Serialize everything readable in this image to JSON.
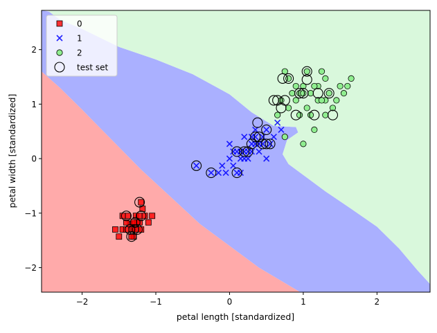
{
  "chart_data": {
    "type": "scatter",
    "xlabel": "petal length [standardized]",
    "ylabel": "petal width [standardized]",
    "xlim": [
      -2.55,
      2.72
    ],
    "ylim": [
      -2.45,
      2.72
    ],
    "x_ticks": [
      -2,
      -1,
      0,
      1,
      2
    ],
    "y_ticks": [
      -2,
      -1,
      0,
      1,
      2
    ],
    "x_tick_labels": [
      "−2",
      "−1",
      "0",
      "1",
      "2"
    ],
    "y_tick_labels": [
      "−2",
      "−1",
      "0",
      "1",
      "2"
    ],
    "grid": false,
    "legend_placement": "top-left",
    "legend": [
      {
        "label": "0",
        "marker": "square",
        "color": "#ff0000"
      },
      {
        "label": "1",
        "marker": "x",
        "color": "#0000ff"
      },
      {
        "label": "2",
        "marker": "circle",
        "color": "#90ee90"
      },
      {
        "label": "test set",
        "marker": "open-circle",
        "color": "#000000"
      }
    ],
    "regions": [
      {
        "class": "0",
        "color": "#ffaaaa",
        "polygon": [
          [
            -2.55,
            2.72
          ],
          [
            -2.55,
            1.6
          ],
          [
            -2.3,
            1.3
          ],
          [
            -2.0,
            0.9
          ],
          [
            -1.6,
            0.35
          ],
          [
            -1.2,
            -0.2
          ],
          [
            -0.8,
            -0.7
          ],
          [
            -0.4,
            -1.2
          ],
          [
            0.0,
            -1.6
          ],
          [
            0.4,
            -2.0
          ],
          [
            0.96,
            -2.45
          ],
          [
            -2.55,
            -2.45
          ]
        ]
      },
      {
        "class": "1",
        "color": "#aab0ff",
        "polygon": [
          [
            -2.55,
            1.6
          ],
          [
            -2.55,
            2.72
          ],
          [
            -2.45,
            2.7
          ],
          [
            -2.3,
            2.55
          ],
          [
            -2.0,
            2.38
          ],
          [
            -1.5,
            2.05
          ],
          [
            -1.0,
            1.82
          ],
          [
            -0.5,
            1.55
          ],
          [
            0.0,
            1.18
          ],
          [
            0.3,
            0.85
          ],
          [
            0.6,
            0.6
          ],
          [
            0.9,
            0.58
          ],
          [
            0.93,
            0.48
          ],
          [
            0.78,
            0.34
          ],
          [
            0.72,
            0.08
          ],
          [
            0.8,
            -0.1
          ],
          [
            1.0,
            -0.3
          ],
          [
            1.3,
            -0.6
          ],
          [
            1.65,
            -0.92
          ],
          [
            2.0,
            -1.25
          ],
          [
            2.3,
            -1.65
          ],
          [
            2.55,
            -2.05
          ],
          [
            2.72,
            -2.3
          ],
          [
            2.72,
            -2.45
          ],
          [
            0.96,
            -2.45
          ],
          [
            0.4,
            -2.0
          ],
          [
            0.0,
            -1.6
          ],
          [
            -0.4,
            -1.2
          ],
          [
            -0.8,
            -0.7
          ],
          [
            -1.2,
            -0.2
          ],
          [
            -1.6,
            0.35
          ],
          [
            -2.0,
            0.9
          ],
          [
            -2.3,
            1.3
          ]
        ]
      },
      {
        "class": "2",
        "color": "#d9f8dc",
        "polygon": [
          [
            -2.45,
            2.72
          ],
          [
            2.72,
            2.72
          ],
          [
            2.72,
            -2.3
          ],
          [
            2.55,
            -2.05
          ],
          [
            2.3,
            -1.65
          ],
          [
            2.0,
            -1.25
          ],
          [
            1.65,
            -0.92
          ],
          [
            1.3,
            -0.6
          ],
          [
            1.0,
            -0.3
          ],
          [
            0.8,
            -0.1
          ],
          [
            0.72,
            0.08
          ],
          [
            0.78,
            0.34
          ],
          [
            0.93,
            0.48
          ],
          [
            0.9,
            0.58
          ],
          [
            0.6,
            0.6
          ],
          [
            0.3,
            0.85
          ],
          [
            0.0,
            1.18
          ],
          [
            -0.5,
            1.55
          ],
          [
            -1.0,
            1.82
          ],
          [
            -1.5,
            2.05
          ],
          [
            -2.0,
            2.38
          ],
          [
            -2.3,
            2.55
          ],
          [
            -2.45,
            2.7
          ]
        ]
      }
    ],
    "series": [
      {
        "name": "0",
        "marker": "square",
        "color": "#ff0000",
        "x": [
          -1.55,
          -1.5,
          -1.45,
          -1.4,
          -1.38,
          -1.35,
          -1.33,
          -1.3,
          -1.3,
          -1.28,
          -1.27,
          -1.25,
          -1.25,
          -1.22,
          -1.2,
          -1.2,
          -1.18,
          -1.15,
          -1.1,
          -1.05,
          -1.33,
          -1.3,
          -1.22,
          -1.4,
          -1.45
        ],
        "y": [
          -1.3,
          -1.43,
          -1.3,
          -1.3,
          -1.05,
          -1.2,
          -1.3,
          -1.3,
          -1.43,
          -1.2,
          -1.05,
          -1.3,
          -1.17,
          -1.05,
          -0.8,
          -1.3,
          -0.92,
          -1.05,
          -1.17,
          -1.05,
          -1.43,
          -1.17,
          -1.17,
          -1.17,
          -1.05
        ]
      },
      {
        "name": "1",
        "marker": "x",
        "color": "#0000ff",
        "x": [
          -0.45,
          -0.25,
          -0.15,
          -0.1,
          -0.05,
          0.0,
          0.0,
          0.05,
          0.1,
          0.1,
          0.15,
          0.15,
          0.2,
          0.2,
          0.25,
          0.25,
          0.3,
          0.3,
          0.35,
          0.35,
          0.4,
          0.4,
          0.45,
          0.45,
          0.5,
          0.5,
          0.55,
          0.6,
          0.65,
          0.7,
          0.15,
          0.05,
          0.35,
          0.3,
          0.2
        ],
        "y": [
          -0.13,
          -0.26,
          -0.26,
          -0.13,
          -0.26,
          0.0,
          0.27,
          0.13,
          0.13,
          -0.26,
          0.0,
          0.13,
          0.13,
          0.4,
          0.13,
          0.0,
          0.27,
          0.13,
          0.4,
          0.27,
          0.27,
          0.13,
          0.4,
          0.27,
          0.53,
          0.0,
          0.27,
          0.4,
          0.66,
          0.53,
          -0.26,
          -0.13,
          0.53,
          0.4,
          0.0
        ]
      },
      {
        "name": "2",
        "marker": "circle",
        "color": "#90ee90",
        "x": [
          0.65,
          0.7,
          0.75,
          0.8,
          0.85,
          0.9,
          0.95,
          1.0,
          1.0,
          1.05,
          1.1,
          1.1,
          1.15,
          1.2,
          1.25,
          1.3,
          1.3,
          1.35,
          1.4,
          1.45,
          1.5,
          1.55,
          1.6,
          1.65,
          0.75,
          0.8,
          1.0,
          1.15,
          1.2,
          1.3,
          0.95,
          0.9,
          1.05,
          1.25
        ],
        "y": [
          0.8,
          1.07,
          1.6,
          0.93,
          1.2,
          1.07,
          1.2,
          0.27,
          1.33,
          1.6,
          1.2,
          0.8,
          0.53,
          1.33,
          1.6,
          1.47,
          1.07,
          1.2,
          0.93,
          1.07,
          1.33,
          1.2,
          1.33,
          1.47,
          0.4,
          1.47,
          1.2,
          1.33,
          1.07,
          0.8,
          0.8,
          1.33,
          0.93,
          1.07
        ]
      }
    ],
    "test_set": {
      "name": "test set",
      "marker": "open-circle",
      "color": "#000000",
      "x": [
        -1.4,
        -1.33,
        -1.3,
        -1.28,
        -1.25,
        -1.22,
        -1.2,
        -1.35,
        -0.45,
        -0.25,
        0.1,
        0.1,
        0.2,
        0.25,
        0.3,
        0.35,
        0.38,
        0.4,
        0.45,
        0.5,
        0.5,
        0.55,
        0.6,
        0.65,
        0.7,
        0.72,
        0.75,
        0.8,
        0.9,
        0.95,
        1.05,
        1.05,
        1.15,
        1.2,
        1.35,
        1.4,
        1.0
      ],
      "y": [
        -1.05,
        -1.43,
        -1.3,
        -1.17,
        -1.3,
        -0.8,
        -1.05,
        -1.3,
        -0.13,
        -0.26,
        -0.26,
        0.13,
        0.13,
        0.13,
        0.27,
        0.4,
        0.66,
        0.4,
        0.27,
        0.53,
        0.27,
        0.27,
        1.07,
        1.07,
        0.93,
        1.47,
        1.07,
        1.47,
        0.8,
        1.2,
        1.45,
        1.6,
        0.8,
        1.2,
        1.2,
        0.8,
        1.2
      ]
    }
  }
}
